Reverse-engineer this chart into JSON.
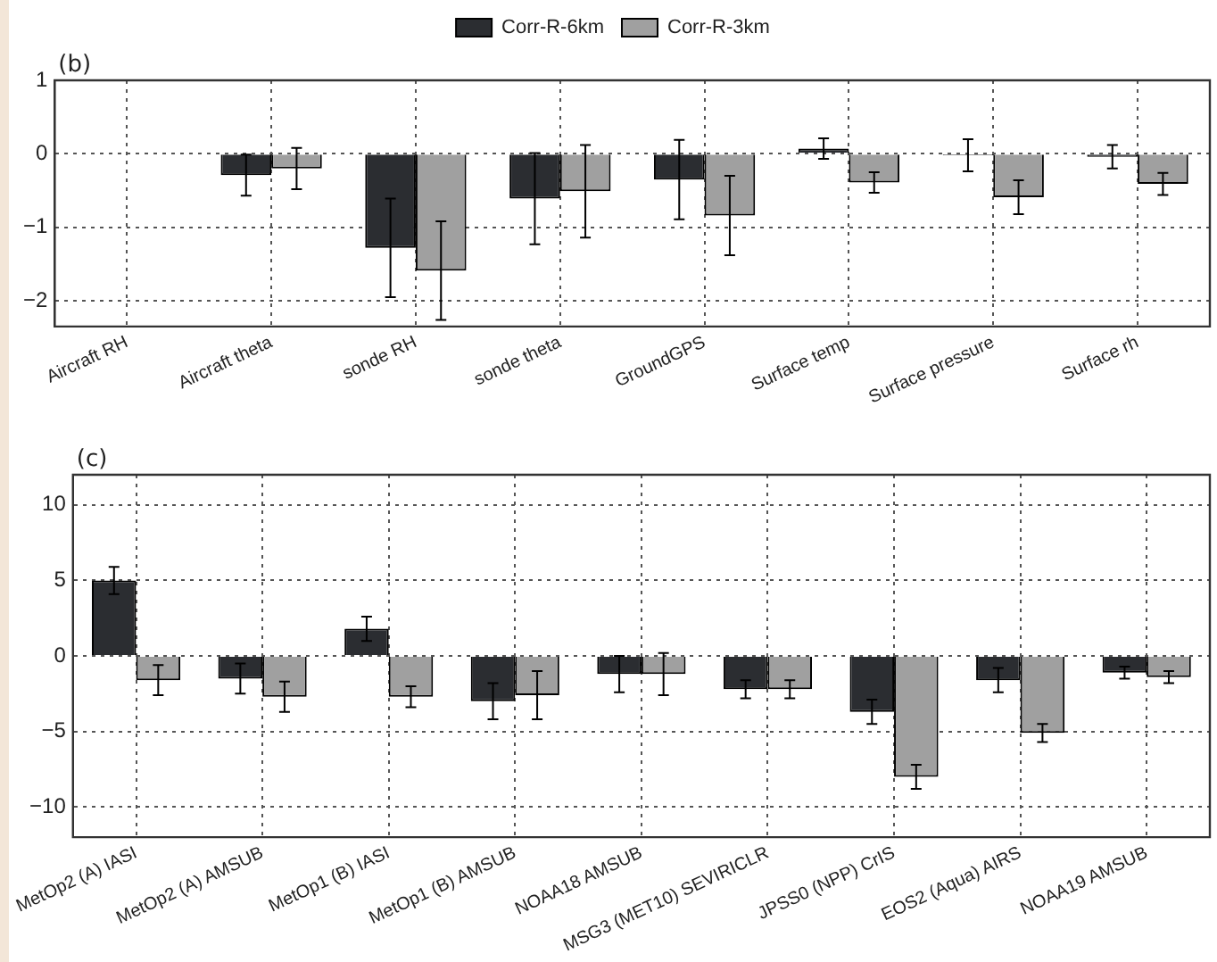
{
  "chart_data": [
    {
      "type": "bar",
      "title": "(b)",
      "categories": [
        "Aircraft RH",
        "Aircraft theta",
        "sonde RH",
        "sonde theta",
        "GroundGPS",
        "Surface temp",
        "Surface pressure",
        "Surface rh"
      ],
      "series": [
        {
          "name": "Corr-R-6km",
          "color": "#2b2d31",
          "values": [
            0,
            -0.29,
            -1.28,
            -0.61,
            -0.35,
            0.07,
            -0.02,
            -0.04
          ],
          "errors": [
            null,
            0.28,
            0.67,
            0.62,
            0.54,
            0.14,
            0.22,
            0.16
          ]
        },
        {
          "name": "Corr-R-3km",
          "color": "#a0a0a0",
          "values": [
            0,
            -0.2,
            -1.59,
            -0.51,
            -0.84,
            -0.39,
            -0.59,
            -0.41
          ],
          "errors": [
            null,
            0.28,
            0.67,
            0.63,
            0.54,
            0.14,
            0.23,
            0.15
          ]
        }
      ],
      "ylim": [
        -2.35,
        1
      ],
      "yticks": [
        -2,
        -1,
        0,
        1
      ],
      "grid": true,
      "legend": "top"
    },
    {
      "type": "bar",
      "title": "(c)",
      "categories": [
        "MetOp2 (A) IASI",
        "MetOp2 (A) AMSUB",
        "MetOp1 (B) IASI",
        "MetOp1 (B) AMSUB",
        "NOAA18 AMSUB",
        "MSG3 (MET10) SEVIRICLR",
        "JPSS0 (NPP) CrIS",
        "EOS2 (Aqua) AIRS",
        "NOAA19 AMSUB"
      ],
      "series": [
        {
          "color": "#2b2d31",
          "values": [
            5.0,
            -1.5,
            1.8,
            -3.0,
            -1.2,
            -2.2,
            -3.7,
            -1.6,
            -1.1
          ],
          "errors": [
            0.9,
            1.0,
            0.8,
            1.2,
            1.2,
            0.6,
            0.8,
            0.8,
            0.4
          ]
        },
        {
          "color": "#a0a0a0",
          "values": [
            -1.6,
            -2.7,
            -2.7,
            -2.6,
            -1.2,
            -2.2,
            -8.0,
            -5.1,
            -1.4
          ],
          "errors": [
            1.0,
            1.0,
            0.7,
            1.6,
            1.4,
            0.6,
            0.8,
            0.6,
            0.4
          ]
        }
      ],
      "ylim": [
        -12,
        12
      ],
      "yticks": [
        -10,
        -5,
        0,
        5,
        10
      ],
      "grid": true,
      "legend": false
    }
  ]
}
